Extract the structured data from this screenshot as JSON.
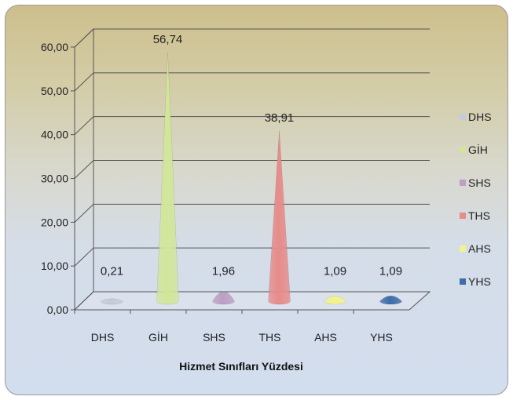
{
  "chart_data": {
    "type": "bar",
    "style": "3d-cone",
    "categories": [
      "DHS",
      "GİH",
      "SHS",
      "THS",
      "AHS",
      "YHS"
    ],
    "values": [
      0.21,
      56.74,
      1.96,
      38.91,
      1.09,
      1.09
    ],
    "value_labels": [
      "0,21",
      "56,74",
      "1,96",
      "38,91",
      "1,09",
      "1,09"
    ],
    "colors": [
      "#c4ccd6",
      "#d2e69a",
      "#bc9fc4",
      "#e68c8a",
      "#f2f28e",
      "#3c6eaa"
    ],
    "xlabel": "Hizmet Sınıfları Yüzdesi",
    "ylabel": "",
    "title": "",
    "ylim": [
      0,
      60
    ],
    "ytick_labels": [
      "0,00",
      "10,00",
      "20,00",
      "30,00",
      "40,00",
      "50,00",
      "60,00"
    ],
    "legend": {
      "position": "right",
      "entries": [
        "DHS",
        "GİH",
        "SHS",
        "THS",
        "AHS",
        "YHS"
      ]
    },
    "grid": true
  }
}
